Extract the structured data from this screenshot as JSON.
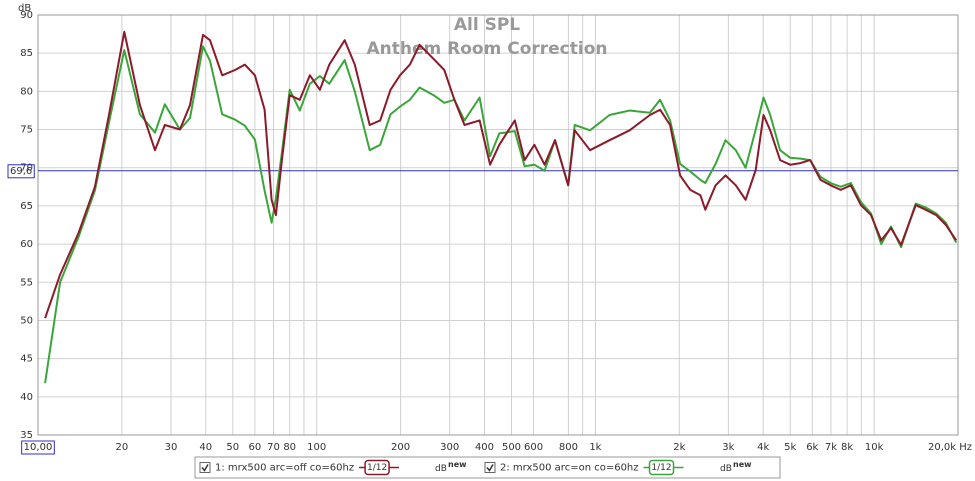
{
  "chart_data": {
    "type": "line",
    "title": "All SPL",
    "subtitle": "Anthem Room Correction",
    "y_label": "dB",
    "log_x": true,
    "grid": true,
    "x": [
      10.6,
      12,
      14,
      16,
      18,
      20.4,
      23.2,
      26.3,
      28.5,
      32.3,
      35.1,
      39.1,
      41.4,
      45.8,
      50.9,
      55.2,
      60,
      65,
      68.9,
      71.4,
      75,
      80,
      87,
      94.5,
      102.7,
      111,
      126,
      137,
      155,
      169,
      184,
      199,
      216,
      234,
      265,
      287,
      312,
      339,
      384,
      419,
      452,
      514,
      557,
      604,
      657,
      716,
      799,
      843,
      956,
      1124,
      1328,
      1569,
      1706,
      1853,
      2014,
      2190,
      2380,
      2480,
      2700,
      2930,
      3190,
      3460,
      3760,
      4010,
      4240,
      4600,
      5000,
      5440,
      5900,
      6420,
      6980,
      7590,
      8250,
      8970,
      9750,
      10600,
      11500,
      12500,
      14100,
      15300,
      16700,
      18100,
      19700
    ],
    "series": [
      {
        "name": "1: mrx500 arc=off co=60hz",
        "color": "#8b1a2a",
        "smoothing": "1/12",
        "badge": "dB",
        "badge_sup": "new",
        "values": [
          50.3,
          56,
          61.5,
          67.5,
          77,
          87.8,
          78.2,
          72.3,
          75.6,
          75,
          78.2,
          87.4,
          86.7,
          82.1,
          82.8,
          83.5,
          82.1,
          77.6,
          65.8,
          63.8,
          71,
          79.5,
          78.9,
          82.1,
          80.2,
          83.5,
          86.7,
          83.5,
          75.6,
          76.2,
          80.2,
          82.1,
          83.5,
          86.1,
          84.1,
          82.8,
          78.9,
          75.6,
          76.2,
          70.4,
          73,
          76.2,
          71,
          73,
          70.4,
          73.6,
          67.7,
          74.9,
          72.3,
          73.6,
          74.9,
          76.9,
          77.6,
          75.6,
          69,
          67.1,
          66.4,
          64.5,
          67.7,
          69,
          67.7,
          65.8,
          69.7,
          76.9,
          74.9,
          71,
          70.4,
          70.6,
          71,
          68.4,
          67.7,
          67.1,
          67.7,
          65.1,
          63.8,
          60.5,
          62.1,
          59.9,
          65.1,
          64.5,
          63.8,
          62.5,
          60.5
        ]
      },
      {
        "name": "2: mrx500 arc=on co=60hz",
        "color": "#3aa63a",
        "smoothing": "1/12",
        "badge": "dB",
        "badge_sup": "new",
        "values": [
          41.8,
          55,
          61,
          67,
          76,
          85.4,
          77,
          74.6,
          78.3,
          75,
          76.5,
          85.9,
          84,
          77,
          76.3,
          75.5,
          73.7,
          67,
          62.8,
          66,
          72,
          80.2,
          77.5,
          81,
          82,
          81,
          84.1,
          80,
          72.3,
          73,
          77,
          78,
          78.9,
          80.5,
          79.4,
          78.5,
          78.9,
          76.2,
          79.2,
          71.5,
          74.5,
          74.8,
          70.2,
          70.4,
          69.6,
          73.6,
          67.7,
          75.6,
          74.9,
          76.9,
          77.5,
          77.2,
          78.9,
          76.2,
          70.5,
          69.5,
          68.4,
          68,
          70.5,
          73.6,
          72.3,
          70,
          75,
          79.2,
          76.9,
          72.3,
          71.3,
          71.2,
          71,
          68.8,
          68,
          67.5,
          68,
          65.5,
          64,
          60,
          62.3,
          59.6,
          65.3,
          64.8,
          64,
          62.8,
          60.2
        ]
      }
    ],
    "xlim": [
      10,
      20000
    ],
    "ylim": [
      35,
      90
    ],
    "xticks": [
      {
        "value": 10,
        "label": "10,00"
      },
      20,
      30,
      40,
      50,
      60,
      70,
      80,
      100,
      200,
      300,
      400,
      500,
      600,
      800,
      {
        "value": 1000,
        "label": "1k"
      },
      {
        "value": 2000,
        "label": "2k"
      },
      {
        "value": 3000,
        "label": "3k"
      },
      {
        "value": 4000,
        "label": "4k"
      },
      {
        "value": 5000,
        "label": "5k"
      },
      {
        "value": 6000,
        "label": "6k"
      },
      {
        "value": 7000,
        "label": "7k"
      },
      {
        "value": 8000,
        "label": "8k"
      },
      {
        "value": 10000,
        "label": "10k"
      },
      {
        "value": 20000,
        "label": "20,0k Hz"
      }
    ],
    "xminorticks": [
      90,
      900,
      9000
    ],
    "yticks": [
      35,
      40,
      45,
      50,
      55,
      60,
      65,
      70,
      75,
      80,
      85,
      90
    ],
    "marker": {
      "value": 69.6,
      "label": "69,6",
      "color": "#3030c0"
    }
  }
}
